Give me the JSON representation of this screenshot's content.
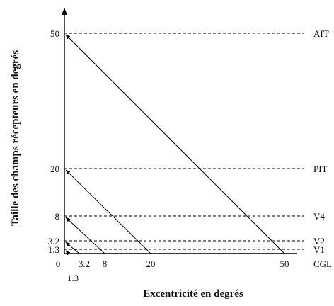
{
  "chart_data": {
    "type": "line",
    "xlabel": "Excentricité en degrés",
    "ylabel": "Taille des champs récepteurs en degrés",
    "x_ticks": [
      {
        "label": "0",
        "value": 0
      },
      {
        "label": "1.3",
        "value": 1.3
      },
      {
        "label": "3.2",
        "value": 3.2
      },
      {
        "label": "8",
        "value": 8
      },
      {
        "label": "20",
        "value": 20
      },
      {
        "label": "50",
        "value": 50
      }
    ],
    "y_ticks": [
      {
        "label": "1.3",
        "value": 1.3
      },
      {
        "label": "3.2",
        "value": 3.2
      },
      {
        "label": "8",
        "value": 8
      },
      {
        "label": "20",
        "value": 20
      },
      {
        "label": "50",
        "value": 50
      }
    ],
    "areas": [
      {
        "name": "CGL",
        "value": 0
      },
      {
        "name": "V1",
        "value": 1.3
      },
      {
        "name": "V2",
        "value": 3.2
      },
      {
        "name": "V4",
        "value": 8
      },
      {
        "name": "PIT",
        "value": 20
      },
      {
        "name": "AIT",
        "value": 50
      }
    ],
    "arrows": [
      {
        "x": 1.3,
        "y": 1.3
      },
      {
        "x": 3.2,
        "y": 3.2
      },
      {
        "x": 8,
        "y": 8
      },
      {
        "x": 20,
        "y": 20
      },
      {
        "x": 50,
        "y": 50
      }
    ]
  }
}
